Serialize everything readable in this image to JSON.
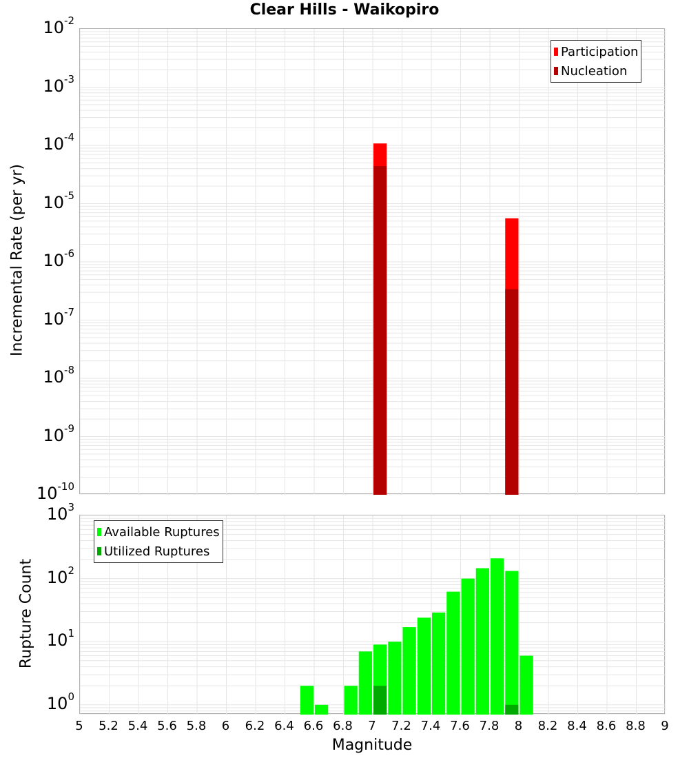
{
  "title": "Clear Hills - Waikopiro",
  "colors": {
    "participation": "#ff0000",
    "nucleation": "#b30000",
    "available": "#00ff00",
    "utilized": "#00aa00",
    "grid": "#e6e6e6",
    "frame": "#b0b0b0"
  },
  "top_panel": {
    "ylabel": "Incremental Rate (per yr)",
    "yticks": [
      {
        "base": "10",
        "exp": "-2"
      },
      {
        "base": "10",
        "exp": "-3"
      },
      {
        "base": "10",
        "exp": "-4"
      },
      {
        "base": "10",
        "exp": "-5"
      },
      {
        "base": "10",
        "exp": "-6"
      },
      {
        "base": "10",
        "exp": "-7"
      },
      {
        "base": "10",
        "exp": "-8"
      },
      {
        "base": "10",
        "exp": "-9"
      },
      {
        "base": "10",
        "exp": "-10"
      }
    ],
    "legend": [
      {
        "label": "Participation",
        "color": "#ff0000"
      },
      {
        "label": "Nucleation",
        "color": "#b30000"
      }
    ]
  },
  "bottom_panel": {
    "ylabel": "Rupture Count",
    "yticks": [
      {
        "base": "10",
        "exp": "3"
      },
      {
        "base": "10",
        "exp": "2"
      },
      {
        "base": "10",
        "exp": "1"
      },
      {
        "base": "10",
        "exp": "0"
      }
    ],
    "legend": [
      {
        "label": "Available Ruptures",
        "color": "#00ff00"
      },
      {
        "label": "Utilized Ruptures",
        "color": "#00aa00"
      }
    ]
  },
  "xaxis": {
    "label": "Magnitude",
    "ticks": [
      "5",
      "5.2",
      "5.4",
      "5.6",
      "5.8",
      "6",
      "6.2",
      "6.4",
      "6.6",
      "6.8",
      "7",
      "7.2",
      "7.4",
      "7.6",
      "7.8",
      "8",
      "8.2",
      "8.4",
      "8.6",
      "8.8",
      "9"
    ]
  },
  "chart_data": [
    {
      "type": "bar",
      "title": "Clear Hills - Waikopiro",
      "xlabel": "Magnitude",
      "ylabel": "Incremental Rate (per yr)",
      "yscale": "log",
      "xlim": [
        5,
        9
      ],
      "ylim": [
        1e-10,
        0.01
      ],
      "grid": true,
      "legend_position": "top-right",
      "bin_width": 0.1,
      "x": [
        7.05,
        7.95
      ],
      "series": [
        {
          "name": "Participation",
          "color": "#ff0000",
          "values": [
            0.000108,
            5.6e-06
          ]
        },
        {
          "name": "Nucleation",
          "color": "#b30000",
          "values": [
            4.4e-05,
            3.4e-07
          ]
        }
      ]
    },
    {
      "type": "bar",
      "xlabel": "Magnitude",
      "ylabel": "Rupture Count",
      "yscale": "log",
      "xlim": [
        5,
        9
      ],
      "ylim": [
        0.7,
        1000
      ],
      "grid": true,
      "legend_position": "top-left",
      "bin_width": 0.1,
      "x": [
        6.55,
        6.65,
        6.85,
        6.95,
        7.05,
        7.15,
        7.25,
        7.35,
        7.45,
        7.55,
        7.65,
        7.75,
        7.85,
        7.95,
        8.05
      ],
      "series": [
        {
          "name": "Available Ruptures",
          "color": "#00ff00",
          "values": [
            2,
            1,
            2,
            7,
            9,
            10,
            17,
            24,
            29,
            62,
            100,
            146,
            209,
            132,
            6
          ]
        },
        {
          "name": "Utilized Ruptures",
          "color": "#00aa00",
          "values": [
            0,
            0,
            0,
            0,
            2,
            0,
            0,
            0,
            0,
            0,
            0,
            0,
            0,
            1,
            0
          ]
        }
      ]
    }
  ]
}
